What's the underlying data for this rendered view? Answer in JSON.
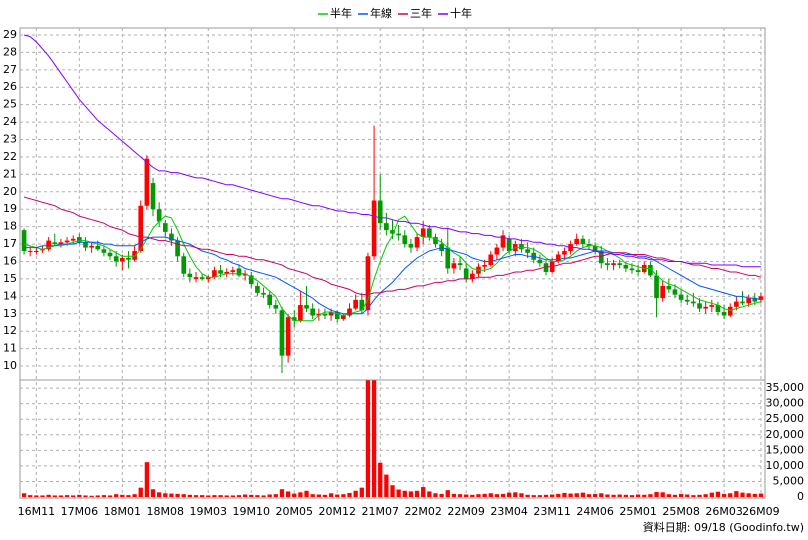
{
  "chart_data": {
    "type": "candlestick",
    "categories": [
      null,
      null,
      "16M11",
      null,
      null,
      null,
      null,
      null,
      null,
      "17M06",
      null,
      null,
      null,
      null,
      null,
      null,
      "18M01",
      null,
      null,
      null,
      null,
      null,
      null,
      "18M08",
      null,
      null,
      null,
      null,
      null,
      null,
      "19M03",
      null,
      null,
      null,
      null,
      null,
      null,
      "19M10",
      null,
      null,
      null,
      null,
      null,
      null,
      "20M05",
      null,
      null,
      null,
      null,
      null,
      null,
      "20M12",
      null,
      null,
      null,
      null,
      null,
      null,
      "21M07",
      null,
      null,
      null,
      null,
      null,
      null,
      "22M02",
      null,
      null,
      null,
      null,
      null,
      null,
      "22M09",
      null,
      null,
      null,
      null,
      null,
      null,
      "23M04",
      null,
      null,
      null,
      null,
      null,
      null,
      "23M11",
      null,
      null,
      null,
      null,
      null,
      null,
      "24M06",
      null,
      null,
      null,
      null,
      null,
      null,
      "25M01",
      null,
      null,
      null,
      null,
      null,
      null,
      "25M08",
      null,
      null,
      null,
      null,
      null,
      null,
      "26M03",
      null,
      null,
      null,
      null,
      null,
      "26M09"
    ],
    "open": [
      17.8,
      16.6,
      16.6,
      16.7,
      16.7,
      17.1,
      17.0,
      17.1,
      17.2,
      17.4,
      17.1,
      16.8,
      16.9,
      16.7,
      16.5,
      16.3,
      16.0,
      16.2,
      16.1,
      16.6,
      19.2,
      20.5,
      19.0,
      18.2,
      17.6,
      17.2,
      16.3,
      15.3,
      15.0,
      15.1,
      15.0,
      15.1,
      15.5,
      15.3,
      15.4,
      15.6,
      15.2,
      15.2,
      14.6,
      14.2,
      14.1,
      13.5,
      13.2,
      10.6,
      12.8,
      12.6,
      13.5,
      13.3,
      12.9,
      13.0,
      12.9,
      13.1,
      12.7,
      12.9,
      13.3,
      13.8,
      13.2,
      16.3,
      19.5,
      18.2,
      17.8,
      17.6,
      17.5,
      17.0,
      16.8,
      17.4,
      17.9,
      17.4,
      17.0,
      16.8,
      15.6,
      15.9,
      15.6,
      15.0,
      15.3,
      15.7,
      15.8,
      16.4,
      16.8,
      17.3,
      16.6,
      17.0,
      16.7,
      16.5,
      16.1,
      15.9,
      15.4,
      16.0,
      16.4,
      16.6,
      17.0,
      17.3,
      17.0,
      16.9,
      16.6,
      15.9,
      15.8,
      15.9,
      15.8,
      15.6,
      15.5,
      15.4,
      15.8,
      15.2,
      13.9,
      14.6,
      14.4,
      14.1,
      13.8,
      13.7,
      13.6,
      13.3,
      13.4,
      13.5,
      13.1,
      12.9,
      13.4,
      13.7,
      13.6,
      13.9,
      13.8
    ],
    "high": [
      17.9,
      16.9,
      16.8,
      16.9,
      17.4,
      17.6,
      17.3,
      17.4,
      17.5,
      17.6,
      17.4,
      17.1,
      17.2,
      16.9,
      16.7,
      16.6,
      16.4,
      16.6,
      16.9,
      19.5,
      22.1,
      20.8,
      19.4,
      18.4,
      17.9,
      17.4,
      16.5,
      15.6,
      15.4,
      15.3,
      15.2,
      15.7,
      15.8,
      15.6,
      15.7,
      15.8,
      15.5,
      15.4,
      14.8,
      14.5,
      14.3,
      13.8,
      13.4,
      13.0,
      13.2,
      14.3,
      14.6,
      13.6,
      13.3,
      13.3,
      13.3,
      13.2,
      13.0,
      13.6,
      14.1,
      14.2,
      16.5,
      23.8,
      21.0,
      18.8,
      18.4,
      18.1,
      17.8,
      17.3,
      17.6,
      18.3,
      18.1,
      17.6,
      17.3,
      17.9,
      16.2,
      16.3,
      15.9,
      15.5,
      15.9,
      16.1,
      16.6,
      17.0,
      17.8,
      17.5,
      17.2,
      17.3,
      17.1,
      16.8,
      16.4,
      16.1,
      16.2,
      16.6,
      16.8,
      17.2,
      17.6,
      17.5,
      17.3,
      17.1,
      16.9,
      16.2,
      16.1,
      16.1,
      16.0,
      15.9,
      15.8,
      16.0,
      16.0,
      15.5,
      14.9,
      15.0,
      14.7,
      14.4,
      14.1,
      14.2,
      13.9,
      13.7,
      13.8,
      13.7,
      13.5,
      13.6,
      14.0,
      14.3,
      14.1,
      14.2,
      14.2
    ],
    "low": [
      16.4,
      16.3,
      16.4,
      16.5,
      16.6,
      16.9,
      16.8,
      16.9,
      17.0,
      17.0,
      16.6,
      16.5,
      16.6,
      16.3,
      16.1,
      15.7,
      15.5,
      15.6,
      16.0,
      16.5,
      19.0,
      18.6,
      18.0,
      17.4,
      16.9,
      16.0,
      15.1,
      14.8,
      14.8,
      14.9,
      14.8,
      15.0,
      15.1,
      15.1,
      15.2,
      15.1,
      14.9,
      14.5,
      14.0,
      13.9,
      13.3,
      13.0,
      9.6,
      10.2,
      12.2,
      12.5,
      13.1,
      12.7,
      12.6,
      12.7,
      12.6,
      12.5,
      12.6,
      12.8,
      13.2,
      13.0,
      12.9,
      16.1,
      17.8,
      17.5,
      17.3,
      17.2,
      16.8,
      16.5,
      16.6,
      17.0,
      17.2,
      16.8,
      16.3,
      15.3,
      15.3,
      15.5,
      14.8,
      14.8,
      15.1,
      15.4,
      15.7,
      16.1,
      16.6,
      16.4,
      16.3,
      16.5,
      16.2,
      15.9,
      15.7,
      15.2,
      15.3,
      15.9,
      16.1,
      16.4,
      16.9,
      16.8,
      16.7,
      16.4,
      15.6,
      15.5,
      15.5,
      15.6,
      15.4,
      15.3,
      15.2,
      15.3,
      15.1,
      12.8,
      13.7,
      14.2,
      13.9,
      13.6,
      13.5,
      13.4,
      13.1,
      13.0,
      13.1,
      12.9,
      12.7,
      12.8,
      13.2,
      13.5,
      13.4,
      13.5,
      13.6
    ],
    "close": [
      16.6,
      16.6,
      16.6,
      16.7,
      17.2,
      17.0,
      17.1,
      17.2,
      17.3,
      17.1,
      16.8,
      16.9,
      16.7,
      16.5,
      16.3,
      16.0,
      16.2,
      16.1,
      16.6,
      19.2,
      21.9,
      19.0,
      18.3,
      17.7,
      17.2,
      16.3,
      15.3,
      15.1,
      15.1,
      15.0,
      15.1,
      15.5,
      15.3,
      15.4,
      15.5,
      15.2,
      15.3,
      14.7,
      14.2,
      14.1,
      13.5,
      13.3,
      10.6,
      12.8,
      12.6,
      13.5,
      13.3,
      12.9,
      13.0,
      12.9,
      13.1,
      12.7,
      12.9,
      13.3,
      13.8,
      13.2,
      16.3,
      19.5,
      18.2,
      17.8,
      17.6,
      17.5,
      17.0,
      16.8,
      17.4,
      17.9,
      17.4,
      17.0,
      16.6,
      15.6,
      15.9,
      15.8,
      15.0,
      15.3,
      15.7,
      15.8,
      16.4,
      16.8,
      17.5,
      16.6,
      17.0,
      16.7,
      16.5,
      16.1,
      15.9,
      15.4,
      16.0,
      16.4,
      16.6,
      17.0,
      17.3,
      17.0,
      16.9,
      16.6,
      15.9,
      15.8,
      15.9,
      15.8,
      15.6,
      15.5,
      15.4,
      15.8,
      15.2,
      13.9,
      14.6,
      14.4,
      14.1,
      13.8,
      13.7,
      13.6,
      13.3,
      13.4,
      13.5,
      13.1,
      12.9,
      13.4,
      13.7,
      13.6,
      13.9,
      13.7,
      14.0
    ],
    "up_color": "#ff0000",
    "down_color": "#009900",
    "ylim": [
      9.2,
      29.4
    ],
    "yticks": [
      10,
      11,
      12,
      13,
      14,
      15,
      16,
      17,
      18,
      19,
      20,
      21,
      22,
      23,
      24,
      25,
      26,
      27,
      28,
      29
    ],
    "grid": true,
    "series": [
      {
        "name": "半年",
        "color": "#00cc00",
        "values": [
          17.0,
          16.9,
          16.8,
          16.7,
          16.8,
          16.9,
          16.9,
          17.0,
          17.1,
          17.2,
          17.2,
          17.1,
          17.0,
          16.9,
          16.7,
          16.5,
          16.3,
          16.3,
          16.3,
          16.7,
          17.3,
          17.9,
          18.3,
          18.6,
          18.5,
          17.8,
          17.0,
          16.3,
          15.7,
          15.3,
          15.1,
          15.1,
          15.2,
          15.3,
          15.3,
          15.3,
          15.3,
          15.1,
          14.9,
          14.6,
          14.3,
          14.0,
          13.3,
          12.9,
          12.6,
          12.6,
          12.6,
          12.6,
          12.9,
          13.1,
          13.1,
          13.0,
          12.9,
          13.0,
          13.1,
          13.2,
          13.8,
          15.0,
          16.0,
          16.9,
          17.5,
          18.4,
          18.6,
          18.1,
          17.6,
          17.4,
          17.4,
          17.3,
          17.1,
          16.8,
          16.5,
          16.3,
          15.9,
          15.6,
          15.5,
          15.5,
          15.6,
          15.9,
          16.3,
          16.6,
          16.8,
          16.8,
          16.8,
          16.7,
          16.5,
          16.2,
          16.0,
          16.0,
          16.1,
          16.3,
          16.6,
          16.8,
          16.9,
          16.9,
          16.8,
          16.6,
          16.4,
          16.2,
          15.9,
          15.8,
          15.7,
          15.6,
          15.6,
          15.2,
          14.9,
          14.7,
          14.6,
          14.4,
          14.2,
          14.0,
          13.8,
          13.7,
          13.6,
          13.5,
          13.3,
          13.2,
          13.3,
          13.4,
          13.5,
          13.6,
          13.7
        ]
      },
      {
        "name": "年線",
        "color": "#0055ff",
        "values": [
          16.8,
          16.8,
          16.8,
          16.9,
          16.9,
          16.9,
          17.0,
          17.0,
          17.0,
          17.1,
          17.1,
          17.1,
          17.1,
          17.0,
          17.0,
          16.9,
          16.9,
          16.9,
          16.9,
          17.1,
          17.3,
          17.4,
          17.4,
          17.4,
          17.3,
          17.2,
          17.1,
          17.0,
          16.8,
          16.6,
          16.5,
          16.4,
          16.2,
          16.1,
          15.9,
          15.8,
          15.6,
          15.5,
          15.4,
          15.3,
          15.2,
          15.1,
          14.9,
          14.7,
          14.5,
          14.3,
          14.1,
          13.9,
          13.6,
          13.4,
          13.2,
          13.1,
          13.0,
          13.0,
          13.0,
          13.0,
          13.3,
          13.8,
          14.2,
          14.5,
          14.8,
          15.2,
          15.6,
          15.9,
          16.2,
          16.4,
          16.6,
          16.7,
          16.8,
          16.7,
          16.6,
          16.5,
          16.4,
          16.2,
          16.1,
          16.0,
          16.0,
          16.1,
          16.2,
          16.3,
          16.4,
          16.4,
          16.3,
          16.3,
          16.2,
          16.1,
          16.1,
          16.1,
          16.2,
          16.2,
          16.3,
          16.4,
          16.5,
          16.6,
          16.6,
          16.6,
          16.5,
          16.5,
          16.4,
          16.4,
          16.3,
          16.3,
          16.2,
          16.0,
          15.8,
          15.6,
          15.4,
          15.2,
          15.0,
          14.8,
          14.6,
          14.5,
          14.4,
          14.3,
          14.2,
          14.1,
          14.0,
          14.0,
          13.9,
          13.9,
          13.8
        ]
      },
      {
        "name": "三年",
        "color": "#cc0066",
        "values": [
          19.7,
          19.6,
          19.5,
          19.4,
          19.3,
          19.2,
          19.0,
          18.9,
          18.8,
          18.6,
          18.5,
          18.4,
          18.3,
          18.2,
          18.0,
          17.9,
          17.8,
          17.6,
          17.5,
          17.4,
          17.4,
          17.3,
          17.2,
          17.2,
          17.1,
          17.0,
          16.9,
          16.9,
          16.8,
          16.7,
          16.7,
          16.6,
          16.5,
          16.4,
          16.4,
          16.3,
          16.3,
          16.2,
          16.1,
          16.1,
          16.0,
          15.9,
          15.8,
          15.6,
          15.5,
          15.4,
          15.3,
          15.1,
          15.0,
          14.9,
          14.7,
          14.6,
          14.5,
          14.4,
          14.2,
          14.1,
          14.1,
          14.2,
          14.2,
          14.3,
          14.3,
          14.4,
          14.4,
          14.5,
          14.6,
          14.6,
          14.7,
          14.8,
          14.8,
          14.9,
          14.9,
          15.0,
          15.0,
          15.0,
          15.1,
          15.1,
          15.1,
          15.2,
          15.2,
          15.3,
          15.4,
          15.4,
          15.5,
          15.5,
          15.6,
          15.7,
          15.7,
          15.8,
          15.9,
          15.9,
          16.0,
          16.1,
          16.2,
          16.3,
          16.3,
          16.4,
          16.5,
          16.5,
          16.5,
          16.4,
          16.4,
          16.4,
          16.3,
          16.2,
          16.2,
          16.1,
          16.0,
          16.0,
          15.9,
          15.8,
          15.8,
          15.7,
          15.6,
          15.6,
          15.5,
          15.4,
          15.4,
          15.3,
          15.2,
          15.2,
          15.1
        ]
      },
      {
        "name": "十年",
        "color": "#8000ff",
        "values": [
          29.0,
          28.9,
          28.6,
          28.2,
          27.8,
          27.3,
          26.8,
          26.3,
          25.8,
          25.3,
          24.9,
          24.5,
          24.1,
          23.8,
          23.5,
          23.2,
          22.9,
          22.6,
          22.3,
          22.0,
          21.7,
          21.4,
          21.2,
          21.2,
          21.1,
          21.1,
          21.0,
          20.9,
          20.8,
          20.8,
          20.7,
          20.6,
          20.5,
          20.4,
          20.4,
          20.3,
          20.2,
          20.1,
          20.0,
          19.9,
          19.8,
          19.7,
          19.6,
          19.6,
          19.5,
          19.4,
          19.3,
          19.2,
          19.2,
          19.1,
          19.0,
          18.9,
          18.9,
          18.8,
          18.8,
          18.7,
          18.7,
          18.6,
          18.5,
          18.5,
          18.4,
          18.3,
          18.3,
          18.2,
          18.2,
          18.1,
          18.0,
          18.0,
          17.9,
          17.9,
          17.8,
          17.7,
          17.7,
          17.6,
          17.6,
          17.5,
          17.5,
          17.4,
          17.4,
          17.3,
          17.3,
          17.2,
          17.2,
          17.1,
          17.1,
          17.0,
          17.0,
          16.9,
          16.9,
          16.8,
          16.8,
          16.7,
          16.7,
          16.6,
          16.5,
          16.5,
          16.4,
          16.4,
          16.3,
          16.3,
          16.2,
          16.2,
          16.1,
          16.1,
          16.1,
          16.0,
          16.0,
          16.0,
          15.9,
          15.9,
          15.9,
          15.9,
          15.8,
          15.8,
          15.8,
          15.8,
          15.8,
          15.7,
          15.7,
          15.7,
          15.7
        ]
      }
    ],
    "volume": {
      "color": "#ff0000",
      "values": [
        1200,
        600,
        500,
        500,
        700,
        500,
        500,
        600,
        500,
        700,
        500,
        400,
        500,
        600,
        500,
        900,
        700,
        600,
        900,
        3000,
        11200,
        2500,
        1500,
        1200,
        1100,
        1000,
        900,
        700,
        600,
        600,
        500,
        600,
        600,
        500,
        500,
        600,
        800,
        700,
        600,
        500,
        800,
        900,
        2500,
        1800,
        1100,
        1500,
        2000,
        900,
        800,
        700,
        1200,
        800,
        900,
        1300,
        2000,
        3000,
        37500,
        37500,
        11000,
        7200,
        3800,
        2400,
        2000,
        1800,
        2000,
        3200,
        1800,
        1200,
        1000,
        2200,
        1000,
        900,
        800,
        700,
        900,
        1000,
        1200,
        900,
        1000,
        1400,
        1500,
        1200,
        700,
        600,
        600,
        700,
        800,
        1000,
        1300,
        1100,
        1200,
        1400,
        900,
        1000,
        1200,
        800,
        700,
        800,
        700,
        600,
        800,
        700,
        900,
        1600,
        1500,
        900,
        700,
        1000,
        800,
        600,
        700,
        900,
        1400,
        1700,
        1000,
        1200,
        1900,
        1400,
        1200,
        1000,
        1100
      ],
      "ylim": [
        0,
        37600
      ],
      "yticks": [
        0,
        {
          "value": 5000,
          "label": "5,000"
        },
        {
          "value": 10000,
          "label": "10,000"
        },
        {
          "value": 15000,
          "label": "15,000"
        },
        {
          "value": 20000,
          "label": "20,000"
        },
        {
          "value": 25000,
          "label": "25,000"
        },
        {
          "value": 30000,
          "label": "30,000"
        },
        {
          "value": 35000,
          "label": "35,000"
        }
      ]
    },
    "footer": "資料日期: 09/18 (Goodinfo.tw)"
  }
}
